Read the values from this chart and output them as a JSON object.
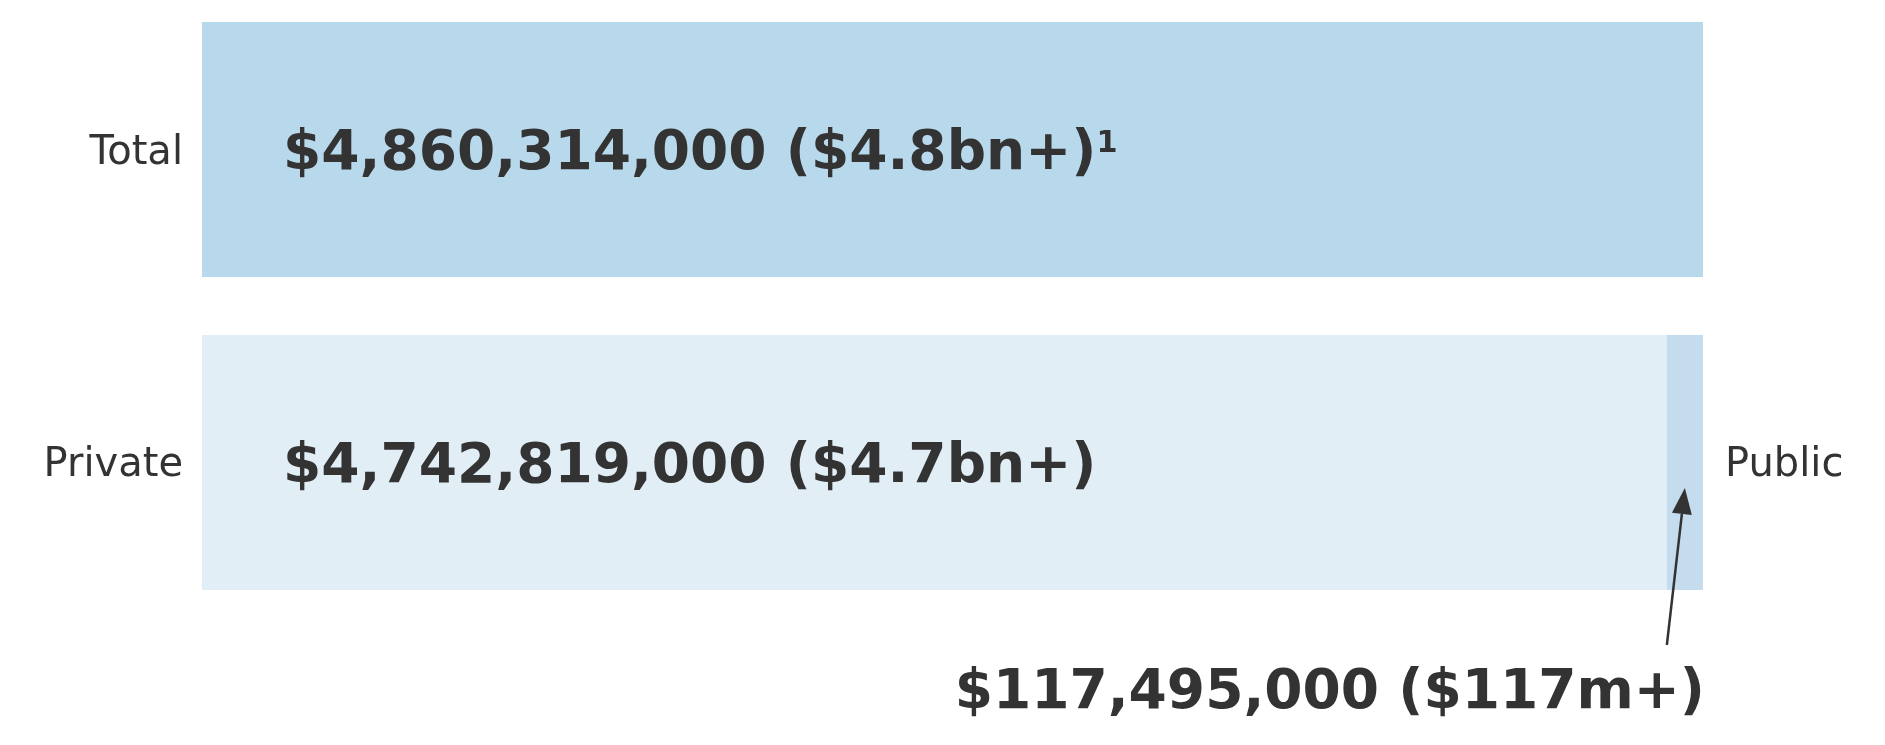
{
  "chart_data": {
    "type": "bar",
    "orientation": "horizontal",
    "stacked": true,
    "categories": [
      "Total",
      "Private"
    ],
    "series": [
      {
        "colors": [
          "#b8d8ec",
          "#e1eef6"
        ],
        "values": [
          4860314000,
          4742819000
        ],
        "value_labels": [
          "$4,860,314,000 ($4.8bn+)$^{1}$",
          "$4,742,819,000 ($4.7bn+)"
        ]
      },
      {
        "name": "Public",
        "color": "#c4dcee",
        "values": [
          null,
          117495000
        ],
        "value_labels": [
          null,
          "$117,495,000 ($117m+)"
        ]
      }
    ]
  }
}
